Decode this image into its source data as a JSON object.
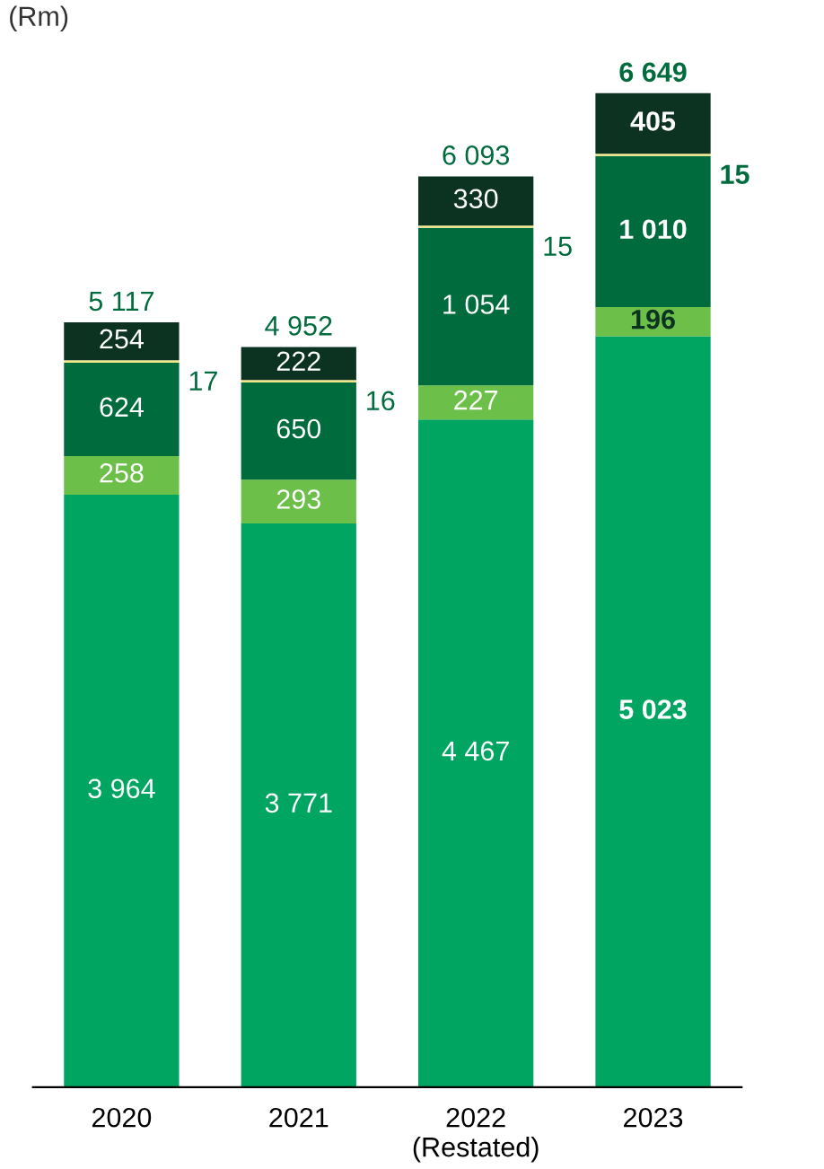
{
  "chart_data": {
    "type": "bar",
    "stacked": true,
    "ylabel": "(Rm)",
    "categories": [
      "2020",
      "2021",
      "2022\n(Restated)",
      "2023"
    ],
    "series": [
      {
        "color": "#00a562",
        "values": [
          3964,
          3771,
          4467,
          5023
        ],
        "value_labels": [
          "3 964",
          "3 771",
          "4 467",
          "5 023"
        ]
      },
      {
        "color": "#6cc04a",
        "values": [
          258,
          293,
          227,
          196
        ],
        "value_labels": [
          "258",
          "293",
          "227",
          "196"
        ]
      },
      {
        "color": "#006b3d",
        "values": [
          624,
          650,
          1054,
          1010
        ],
        "value_labels": [
          "624",
          "650",
          "1 054",
          "1 010"
        ]
      },
      {
        "color": "#f0e68a",
        "values": [
          17,
          16,
          15,
          15
        ],
        "value_labels": [
          "17",
          "16",
          "15",
          "15"
        ]
      },
      {
        "color": "#0c3321",
        "values": [
          254,
          222,
          330,
          405
        ],
        "value_labels": [
          "254",
          "222",
          "330",
          "405"
        ]
      }
    ],
    "totals": [
      "5 117",
      "4 952",
      "6 093",
      "6 649"
    ],
    "grid": false,
    "legend": false
  }
}
